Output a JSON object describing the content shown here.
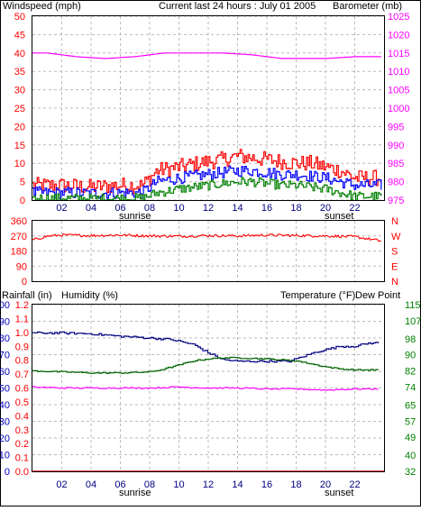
{
  "colors": {
    "wind": "#ff0000",
    "wind_avg": "#0000ff",
    "wind_low": "#008000",
    "barometer": "#ff00ff",
    "direction": "#ff0000",
    "humidity": "#000080",
    "humidity_axis": "#0000c0",
    "temperature": "#006400",
    "temp_axis": "#008000",
    "dewpoint": "#ff00ff",
    "rain_axis": "#ff0000",
    "grid": "#bbbbbb"
  },
  "header": {
    "windspeed_label": "Windspeed (mph)",
    "title": "Current last 24 hours : July 01 2005",
    "barometer_label": "Barometer (mb)"
  },
  "bottom_header": {
    "rainfall_label": "Rainfall (in)",
    "humidity_label": "Humidity (%)",
    "temperature_label": "Temperature (°F)",
    "dewpoint_label": "Dew Point"
  },
  "time_axis": {
    "ticks": [
      "02",
      "04",
      "06",
      "08",
      "10",
      "12",
      "14",
      "16",
      "18",
      "20",
      "22"
    ],
    "sunrise_label": "sunrise",
    "sunset_label": "sunset"
  },
  "chart_data": [
    {
      "id": "wind_baro",
      "type": "line",
      "xlim": [
        0,
        24
      ],
      "left_axis": {
        "label": "Windspeed (mph)",
        "ticks": [
          0,
          5,
          10,
          15,
          20,
          25,
          30,
          35,
          40,
          45,
          50
        ],
        "range": [
          0,
          50
        ]
      },
      "right_axis": {
        "label": "Barometer (mb)",
        "ticks": [
          975,
          980,
          985,
          990,
          995,
          1000,
          1005,
          1010,
          1015,
          1020,
          1025
        ],
        "range": [
          975,
          1025
        ]
      },
      "series": [
        {
          "key": "wind_gust",
          "axis": "left",
          "x": [
            0,
            2,
            4,
            6,
            7.5,
            8.5,
            10,
            12,
            13,
            14,
            15,
            16,
            17,
            18,
            19,
            20,
            21,
            22,
            23.8
          ],
          "y": [
            4,
            4,
            3.5,
            4,
            4,
            8,
            9,
            10.5,
            11,
            12,
            11.5,
            11,
            10.5,
            10,
            10,
            9,
            8,
            6,
            6
          ]
        },
        {
          "key": "wind_avg",
          "axis": "left",
          "x": [
            0,
            2,
            4,
            6,
            7.5,
            8.5,
            10,
            12,
            13,
            14,
            15,
            16,
            17,
            18,
            19,
            20,
            21,
            22,
            23.8
          ],
          "y": [
            2,
            2,
            1.8,
            2,
            2,
            5,
            6,
            7,
            7.5,
            8,
            8,
            7.5,
            7,
            7,
            6.5,
            6,
            5,
            4,
            4
          ]
        },
        {
          "key": "wind_low",
          "axis": "left",
          "x": [
            0,
            2,
            4,
            6,
            7.5,
            8.5,
            10,
            12,
            13,
            14,
            15,
            16,
            17,
            18,
            19,
            20,
            21,
            22,
            23.8
          ],
          "y": [
            0.5,
            0.5,
            0.4,
            0.5,
            0.5,
            2,
            3,
            4,
            4.5,
            5,
            5,
            4.5,
            4,
            4,
            3.5,
            3,
            2,
            1,
            1
          ]
        },
        {
          "key": "barometer",
          "axis": "right",
          "x": [
            0,
            1,
            3,
            5,
            7,
            9,
            11,
            13,
            15,
            17,
            18,
            20,
            22,
            23.8
          ],
          "y": [
            1015,
            1015,
            1014,
            1013.5,
            1014,
            1015,
            1015,
            1015,
            1014.5,
            1013.5,
            1013.5,
            1013.5,
            1014,
            1014
          ]
        }
      ]
    },
    {
      "id": "direction",
      "type": "line",
      "xlim": [
        0,
        24
      ],
      "left_axis": {
        "ticks": [
          0,
          90,
          180,
          270,
          360
        ],
        "range": [
          0,
          360
        ]
      },
      "right_axis": {
        "ticks": [
          "N",
          "W",
          "S",
          "E",
          "N"
        ]
      },
      "series": [
        {
          "key": "wind_direction",
          "axis": "left",
          "x": [
            0,
            1,
            2,
            4,
            6,
            8,
            10,
            12,
            14,
            16,
            18,
            20,
            22,
            23.8
          ],
          "y": [
            245,
            268,
            275,
            272,
            275,
            270,
            268,
            272,
            270,
            275,
            272,
            270,
            265,
            240
          ]
        }
      ]
    },
    {
      "id": "humidity_temp",
      "type": "line",
      "xlim": [
        0,
        24
      ],
      "rain_axis": {
        "label": "Rainfall (in)",
        "ticks": [
          0.0,
          0.1,
          0.2,
          0.3,
          0.4,
          0.5,
          0.6,
          0.7,
          0.8,
          0.9,
          1.0,
          1.1,
          1.2
        ],
        "range": [
          0,
          1.2
        ]
      },
      "humidity_axis": {
        "label": "Humidity (%)",
        "ticks": [
          0,
          10,
          20,
          30,
          40,
          50,
          60,
          70,
          80,
          90,
          100
        ],
        "range": [
          0,
          100
        ]
      },
      "temp_axis": {
        "label": "Temperature (°F)",
        "ticks": [
          32,
          40,
          49,
          57,
          65,
          74,
          82,
          90,
          98,
          107,
          115
        ],
        "range": [
          32,
          115
        ]
      },
      "series": [
        {
          "key": "humidity",
          "axis": "humidity",
          "x": [
            0,
            2,
            4,
            6,
            8,
            9.5,
            11,
            12,
            13,
            14,
            16,
            17.5,
            18.5,
            19.5,
            21,
            22,
            23,
            23.6
          ],
          "y": [
            83,
            83,
            82.5,
            81,
            80,
            79,
            76,
            71,
            67,
            66,
            66,
            66,
            69,
            72,
            75,
            75,
            77,
            77
          ]
        },
        {
          "key": "temperature",
          "axis": "temp",
          "x": [
            0,
            2,
            4,
            6,
            8,
            9,
            10,
            11,
            12,
            13,
            14,
            16,
            17,
            18,
            19,
            20,
            21,
            22,
            23.6
          ],
          "y": [
            82,
            81.5,
            81,
            81,
            81.5,
            83,
            85,
            87,
            88,
            88.5,
            88.5,
            88,
            87.5,
            87,
            85.5,
            84,
            83,
            82.5,
            82.5
          ]
        },
        {
          "key": "dew_point",
          "axis": "temp",
          "x": [
            0,
            2,
            4,
            6,
            8,
            10,
            12,
            14,
            16,
            18,
            20,
            22,
            23.6
          ],
          "y": [
            74,
            73.5,
            73.5,
            73.5,
            73.5,
            74,
            73.5,
            73.5,
            73,
            73,
            72.5,
            73,
            73
          ]
        },
        {
          "key": "rainfall",
          "axis": "rain",
          "x": [
            0,
            24
          ],
          "y": [
            0.0,
            0.0
          ]
        }
      ]
    }
  ]
}
